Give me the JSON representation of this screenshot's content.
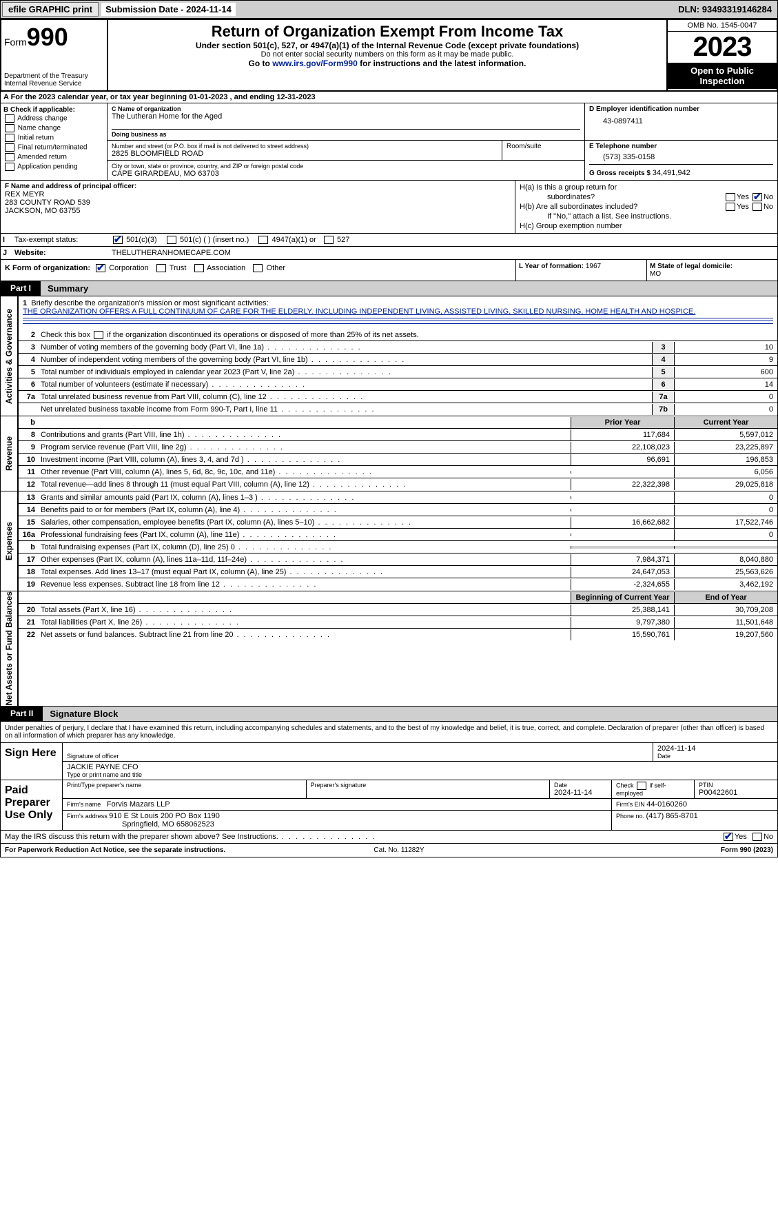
{
  "topbar": {
    "efile": "efile GRAPHIC print",
    "subdate_label": "Submission Date - ",
    "subdate": "2024-11-14",
    "dln_label": "DLN: ",
    "dln": "93493319146284"
  },
  "header": {
    "form_label": "Form",
    "form_no": "990",
    "title": "Return of Organization Exempt From Income Tax",
    "sub": "Under section 501(c), 527, or 4947(a)(1) of the Internal Revenue Code (except private foundations)",
    "sub2": "Do not enter social security numbers on this form as it may be made public.",
    "sub3_pre": "Go to ",
    "sub3_link": "www.irs.gov/Form990",
    "sub3_post": " for instructions and the latest information.",
    "dept": "Department of the Treasury\nInternal Revenue Service",
    "omb": "OMB No. 1545-0047",
    "year": "2023",
    "opi": "Open to Public Inspection"
  },
  "rowA": "A For the 2023 calendar year, or tax year beginning 01-01-2023    , and ending 12-31-2023",
  "colB": {
    "label": "B Check if applicable:",
    "items": [
      "Address change",
      "Name change",
      "Initial return",
      "Final return/terminated",
      "Amended return",
      "Application pending"
    ]
  },
  "c": {
    "label": "C Name of organization",
    "name": "The Lutheran Home for the Aged",
    "dba_label": "Doing business as",
    "addr_label": "Number and street (or P.O. box if mail is not delivered to street address)",
    "addr": "2825 BLOOMFIELD ROAD",
    "suite_label": "Room/suite",
    "city_label": "City or town, state or province, country, and ZIP or foreign postal code",
    "city": "CAPE GIRARDEAU, MO  63703"
  },
  "d": {
    "label": "D Employer identification number",
    "val": "43-0897411"
  },
  "e": {
    "label": "E Telephone number",
    "val": "(573) 335-0158"
  },
  "g": {
    "label": "G Gross receipts $ ",
    "val": "34,491,942"
  },
  "f": {
    "label": "F  Name and address of principal officer:",
    "name": "REX MEYR",
    "addr1": "283 COUNTY ROAD 539",
    "addr2": "JACKSON, MO  63755"
  },
  "h": {
    "a": "H(a)  Is this a group return for",
    "a2": "subordinates?",
    "b": "H(b)  Are all subordinates included?",
    "note": "If \"No,\" attach a list. See instructions.",
    "c": "H(c)  Group exemption number  ",
    "yes": "Yes",
    "no": "No"
  },
  "i": {
    "label": "Tax-exempt status:",
    "opts": [
      "501(c)(3)",
      "501(c) (  ) (insert no.)",
      "4947(a)(1) or",
      "527"
    ]
  },
  "j": {
    "label": "Website: ",
    "val": "THELUTHERANHOMECAPE.COM"
  },
  "k": {
    "label": "K Form of organization:",
    "opts": [
      "Corporation",
      "Trust",
      "Association",
      "Other"
    ],
    "l": "L Year of formation: ",
    "lval": "1967",
    "m": "M State of legal domicile:",
    "mval": "MO"
  },
  "part1": {
    "tag": "Part I",
    "title": "Summary"
  },
  "mission": {
    "num": "1",
    "label": "Briefly describe the organization's mission or most significant activities:",
    "text": "THE ORGANIZATION OFFERS A FULL CONTINUUM OF CARE FOR THE ELDERLY. INCLUDING INDEPENDENT LIVING, ASSISTED LIVING, SKILLED NURSING, HOME HEALTH AND HOSPICE."
  },
  "l2": "Check this box     if the organization discontinued its operations or disposed of more than 25% of its net assets.",
  "sideLabels": {
    "ag": "Activities & Governance",
    "rev": "Revenue",
    "exp": "Expenses",
    "na": "Net Assets or Fund Balances"
  },
  "govLines": [
    {
      "n": "3",
      "t": "Number of voting members of the governing body (Part VI, line 1a)",
      "b": "3",
      "v": "10"
    },
    {
      "n": "4",
      "t": "Number of independent voting members of the governing body (Part VI, line 1b)",
      "b": "4",
      "v": "9"
    },
    {
      "n": "5",
      "t": "Total number of individuals employed in calendar year 2023 (Part V, line 2a)",
      "b": "5",
      "v": "600"
    },
    {
      "n": "6",
      "t": "Total number of volunteers (estimate if necessary)",
      "b": "6",
      "v": "14"
    },
    {
      "n": "7a",
      "t": "Total unrelated business revenue from Part VIII, column (C), line 12",
      "b": "7a",
      "v": "0"
    },
    {
      "n": "",
      "t": "Net unrelated business taxable income from Form 990-T, Part I, line 11",
      "b": "7b",
      "v": "0"
    }
  ],
  "revHdr": {
    "p": "Prior Year",
    "c": "Current Year"
  },
  "revLines": [
    {
      "n": "8",
      "t": "Contributions and grants (Part VIII, line 1h)",
      "p": "117,684",
      "c": "5,597,012"
    },
    {
      "n": "9",
      "t": "Program service revenue (Part VIII, line 2g)",
      "p": "22,108,023",
      "c": "23,225,897"
    },
    {
      "n": "10",
      "t": "Investment income (Part VIII, column (A), lines 3, 4, and 7d )",
      "p": "96,691",
      "c": "196,853"
    },
    {
      "n": "11",
      "t": "Other revenue (Part VIII, column (A), lines 5, 6d, 8c, 9c, 10c, and 11e)",
      "p": "",
      "c": "6,056"
    },
    {
      "n": "12",
      "t": "Total revenue—add lines 8 through 11 (must equal Part VIII, column (A), line 12)",
      "p": "22,322,398",
      "c": "29,025,818"
    }
  ],
  "expLines": [
    {
      "n": "13",
      "t": "Grants and similar amounts paid (Part IX, column (A), lines 1–3 )",
      "p": "",
      "c": "0"
    },
    {
      "n": "14",
      "t": "Benefits paid to or for members (Part IX, column (A), line 4)",
      "p": "",
      "c": "0"
    },
    {
      "n": "15",
      "t": "Salaries, other compensation, employee benefits (Part IX, column (A), lines 5–10)",
      "p": "16,662,682",
      "c": "17,522,746"
    },
    {
      "n": "16a",
      "t": "Professional fundraising fees (Part IX, column (A), line 11e)",
      "p": "",
      "c": "0"
    },
    {
      "n": "b",
      "t": "Total fundraising expenses (Part IX, column (D), line 25) 0",
      "p": "GRAY",
      "c": "GRAY"
    },
    {
      "n": "17",
      "t": "Other expenses (Part IX, column (A), lines 11a–11d, 11f–24e)",
      "p": "7,984,371",
      "c": "8,040,880"
    },
    {
      "n": "18",
      "t": "Total expenses. Add lines 13–17 (must equal Part IX, column (A), line 25)",
      "p": "24,647,053",
      "c": "25,563,626"
    },
    {
      "n": "19",
      "t": "Revenue less expenses. Subtract line 18 from line 12",
      "p": "-2,324,655",
      "c": "3,462,192"
    }
  ],
  "naHdr": {
    "p": "Beginning of Current Year",
    "c": "End of Year"
  },
  "naLines": [
    {
      "n": "20",
      "t": "Total assets (Part X, line 16)",
      "p": "25,388,141",
      "c": "30,709,208"
    },
    {
      "n": "21",
      "t": "Total liabilities (Part X, line 26)",
      "p": "9,797,380",
      "c": "11,501,648"
    },
    {
      "n": "22",
      "t": "Net assets or fund balances. Subtract line 21 from line 20",
      "p": "15,590,761",
      "c": "19,207,560"
    }
  ],
  "part2": {
    "tag": "Part II",
    "title": "Signature Block"
  },
  "penalties": "Under penalties of perjury, I declare that I have examined this return, including accompanying schedules and statements, and to the best of my knowledge and belief, it is true, correct, and complete. Declaration of preparer (other than officer) is based on all information of which preparer has any knowledge.",
  "sign": {
    "here": "Sign Here",
    "sig_label": "Signature of officer",
    "name_label": "Type or print name and title",
    "name": "JACKIE PAYNE CFO",
    "date_label": "Date",
    "date": "2024-11-14"
  },
  "paid": {
    "label": "Paid Preparer Use Only",
    "pt_label": "Print/Type preparer's name",
    "ps_label": "Preparer's signature",
    "date_label": "Date",
    "date": "2024-11-14",
    "check_label": "Check      if self-employed",
    "ptin_label": "PTIN",
    "ptin": "P00422601",
    "firm_label": "Firm's name   ",
    "firm": "Forvis Mazars LLP",
    "fein_label": "Firm's EIN  ",
    "fein": "44-0160260",
    "faddr_label": "Firm's address ",
    "faddr1": "910 E St Louis 200 PO Box 1190",
    "faddr2": "Springfield, MO  658062523",
    "phone_label": "Phone no. ",
    "phone": "(417) 865-8701"
  },
  "discuss": "May the IRS discuss this return with the preparer shown above? See Instructions.",
  "footer": {
    "l": "For Paperwork Reduction Act Notice, see the separate instructions.",
    "m": "Cat. No. 11282Y",
    "r": "Form 990 (2023)"
  }
}
